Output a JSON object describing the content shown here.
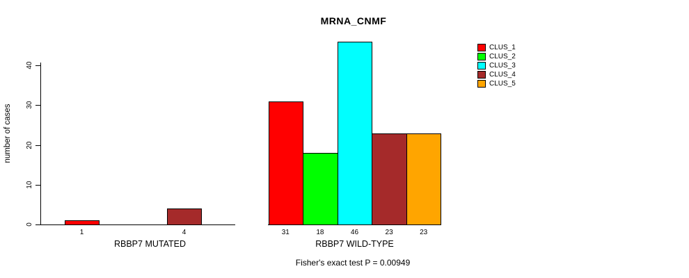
{
  "chart_data": {
    "type": "bar",
    "title": "MRNA_CNMF",
    "ylabel": "number of cases",
    "xlabel": "",
    "annotation": "Fisher's exact test P = 0.00949",
    "categories": [
      "RBBP7 MUTATED",
      "RBBP7 WILD-TYPE"
    ],
    "series": [
      {
        "name": "CLUS_1",
        "color": "#FF0000",
        "values": [
          1,
          31
        ]
      },
      {
        "name": "CLUS_2",
        "color": "#00FF00",
        "values": [
          0,
          18
        ]
      },
      {
        "name": "CLUS_3",
        "color": "#00FFFF",
        "values": [
          0,
          46
        ]
      },
      {
        "name": "CLUS_4",
        "color": "#A52A2A",
        "values": [
          4,
          23
        ]
      },
      {
        "name": "CLUS_5",
        "color": "#FFA500",
        "values": [
          0,
          23
        ]
      }
    ],
    "yticks": [
      0,
      10,
      20,
      30,
      40
    ],
    "ylim": [
      0,
      46
    ],
    "grid": false,
    "legend_position": "right",
    "value_labels": "nonzero-only, under each bar"
  }
}
